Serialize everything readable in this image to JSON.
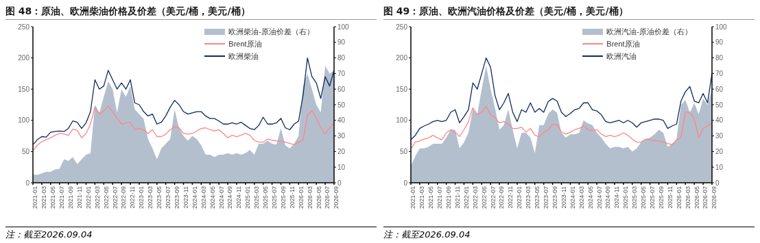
{
  "chart_data": [
    {
      "type": "line",
      "title": "图 48：原油、欧洲柴油价格及价差（美元/桶，美元/桶）",
      "annotations": [
        "注：截至2026.09.04"
      ],
      "legend": "top right",
      "grid": false,
      "x": [
        "2021-01",
        "2021-02",
        "2021-03",
        "2021-04",
        "2021-05",
        "2021-06",
        "2021-07",
        "2021-08",
        "2021-09",
        "2021-10",
        "2021-11",
        "2021-12",
        "2022-01",
        "2022-02",
        "2022-03",
        "2022-04",
        "2022-05",
        "2022-06",
        "2022-07",
        "2022-08",
        "2022-09",
        "2022-10",
        "2022-11",
        "2022-12",
        "2023-01",
        "2023-02",
        "2023-03",
        "2023-04",
        "2023-05",
        "2023-06",
        "2023-07",
        "2023-08",
        "2023-09",
        "2023-10",
        "2023-11",
        "2023-12",
        "2024-01",
        "2024-02",
        "2024-03",
        "2024-04",
        "2024-05",
        "2024-06",
        "2024-07",
        "2024-08",
        "2024-09",
        "2024-10",
        "2024-11",
        "2024-12",
        "2025-01",
        "2025-02",
        "2025-03",
        "2025-04",
        "2025-05",
        "2025-06",
        "2025-07",
        "2025-08",
        "2025-09",
        "2025-10",
        "2025-11",
        "2025-12",
        "2026-01",
        "2026-02",
        "2026-03",
        "2026-04",
        "2026-05",
        "2026-06",
        "2026-07",
        "2026-08",
        "2026-09"
      ],
      "xlim": [
        "2021-01",
        "2026-09"
      ],
      "xticks": [
        "2021-01",
        "2021-03",
        "2021-05",
        "2021-07",
        "2021-09",
        "2021-11",
        "2022-01",
        "2022-03",
        "2022-05",
        "2022-07",
        "2022-09",
        "2022-11",
        "2023-01",
        "2023-03",
        "2023-05",
        "2023-07",
        "2023-09",
        "2023-11",
        "2024-01",
        "2024-03",
        "2024-05",
        "2024-07",
        "2024-09",
        "2024-11",
        "2025-01",
        "2025-03",
        "2025-05",
        "2025-07",
        "2025-09",
        "2025-11",
        "2026-01",
        "2026-03",
        "2026-05",
        "2026-07",
        "2026-09"
      ],
      "ylim": [
        0,
        250
      ],
      "yticks": [
        0,
        50,
        100,
        150,
        200,
        250
      ],
      "y2lim": [
        0,
        100
      ],
      "y2ticks": [
        0,
        10,
        20,
        30,
        40,
        50,
        60,
        70,
        80,
        90,
        100
      ],
      "series": [
        {
          "name": "欧洲柴油-原油价差（右）",
          "type": "area",
          "axis": "y2",
          "color": "#b4bfce",
          "values": [
            5.5,
            5,
            6,
            7,
            7,
            8.5,
            9,
            15,
            14,
            16.5,
            12,
            15,
            18,
            19,
            50,
            45,
            55,
            65,
            60,
            45,
            60,
            55,
            62,
            47,
            44,
            41,
            28,
            22,
            15,
            22,
            25,
            28,
            47,
            35,
            30,
            27,
            30,
            28,
            24,
            18,
            18,
            16.5,
            18,
            18,
            19,
            18,
            19,
            18,
            19,
            21,
            18,
            25,
            25,
            27,
            25,
            24.5,
            35,
            24,
            22,
            25,
            30,
            62,
            70,
            60,
            50,
            45,
            75,
            70,
            72
          ]
        },
        {
          "name": "Brent原油",
          "color": "#ff8585",
          "values": [
            52,
            60,
            66,
            69,
            72,
            76,
            79,
            78,
            76,
            86,
            84,
            72,
            79,
            94,
            121,
            110,
            115,
            123,
            114,
            103,
            94,
            96,
            97,
            85,
            87,
            85,
            79,
            85,
            74,
            74,
            78,
            85,
            90,
            88,
            79,
            78,
            79,
            83,
            87,
            88,
            85,
            83,
            85,
            79,
            72,
            76,
            74,
            76,
            79,
            76,
            68,
            65,
            65,
            70,
            68,
            67,
            67,
            65,
            63,
            61,
            65,
            68,
            108,
            116,
            103,
            88,
            78,
            88,
            96
          ]
        },
        {
          "name": "欧洲柴油",
          "color": "#0d2a5e",
          "values": [
            61,
            69,
            74,
            73,
            81,
            82,
            83,
            82,
            87,
            99,
            97,
            87,
            96,
            114,
            165,
            150,
            155,
            180,
            165,
            150,
            160,
            150,
            165,
            128,
            125,
            114,
            107,
            110,
            94,
            97,
            107,
            121,
            132,
            125,
            114,
            110,
            112,
            114,
            114,
            107,
            103,
            103,
            99,
            94,
            94,
            96,
            94,
            97,
            92,
            87,
            85,
            92,
            105,
            94,
            94,
            96,
            103,
            88,
            85,
            94,
            99,
            140,
            200,
            170,
            160,
            135,
            170,
            155,
            180
          ]
        }
      ]
    },
    {
      "type": "line",
      "title": "图 49：原油、欧洲汽油价格及价差（美元/桶，美元/桶）",
      "annotations": [
        "注：截至2026.09.04"
      ],
      "legend": "top right",
      "grid": false,
      "x": [
        "2021-01",
        "2021-02",
        "2021-03",
        "2021-04",
        "2021-05",
        "2021-06",
        "2021-07",
        "2021-08",
        "2021-09",
        "2021-10",
        "2021-11",
        "2021-12",
        "2022-01",
        "2022-02",
        "2022-03",
        "2022-04",
        "2022-05",
        "2022-06",
        "2022-07",
        "2022-08",
        "2022-09",
        "2022-10",
        "2022-11",
        "2022-12",
        "2023-01",
        "2023-02",
        "2023-03",
        "2023-04",
        "2023-05",
        "2023-06",
        "2023-07",
        "2023-08",
        "2023-09",
        "2023-10",
        "2023-11",
        "2023-12",
        "2024-01",
        "2024-02",
        "2024-03",
        "2024-04",
        "2024-05",
        "2024-06",
        "2024-07",
        "2024-08",
        "2024-09",
        "2024-10",
        "2024-11",
        "2024-12",
        "2025-01",
        "2025-02",
        "2025-03",
        "2025-04",
        "2025-05",
        "2025-06",
        "2025-07",
        "2025-08",
        "2025-09",
        "2025-10",
        "2025-11",
        "2025-12",
        "2026-01",
        "2026-02",
        "2026-03",
        "2026-04",
        "2026-05",
        "2026-06",
        "2026-07",
        "2026-08",
        "2026-09"
      ],
      "xlim": [
        "2021-01",
        "2026-09"
      ],
      "xticks": [
        "2021-01",
        "2021-03",
        "2021-05",
        "2021-07",
        "2021-09",
        "2021-11",
        "2022-01",
        "2022-03",
        "2022-05",
        "2022-07",
        "2022-09",
        "2022-11",
        "2023-01",
        "2023-03",
        "2023-05",
        "2023-07",
        "2023-09",
        "2023-11",
        "2024-01",
        "2024-03",
        "2024-05",
        "2024-07",
        "2024-09",
        "2024-11",
        "2025-01",
        "2025-03",
        "2025-05",
        "2025-07",
        "2025-09",
        "2025-11",
        "2026-01",
        "2026-03",
        "2026-05",
        "2026-07",
        "2026-09"
      ],
      "ylim": [
        0,
        250
      ],
      "yticks": [
        0,
        50,
        100,
        150,
        200,
        250
      ],
      "y2lim": [
        0,
        100
      ],
      "y2ticks": [
        0,
        10,
        20,
        30,
        40,
        50,
        60,
        70,
        80,
        90,
        100
      ],
      "series": [
        {
          "name": "欧洲汽油-原油价差（右）",
          "type": "area",
          "axis": "y2",
          "color": "#b4bfce",
          "values": [
            11,
            17,
            22,
            22,
            23,
            25,
            25,
            25,
            29,
            34,
            34,
            22,
            26,
            32,
            47,
            44,
            60,
            75,
            60,
            48,
            34,
            37,
            47,
            34,
            22,
            32,
            32,
            29,
            19,
            37,
            37,
            44,
            47,
            45,
            32,
            29,
            31,
            31,
            32,
            40,
            38,
            37,
            32,
            29,
            25,
            22,
            23,
            23,
            22,
            23,
            20,
            22,
            26,
            28,
            29,
            31,
            34,
            32,
            23,
            25,
            28,
            50,
            53,
            45,
            51,
            44,
            54,
            50,
            60
          ]
        },
        {
          "name": "Brent原油",
          "color": "#ff8585",
          "values": [
            54,
            65,
            67,
            70,
            72,
            76,
            72,
            69,
            80,
            85,
            81,
            74,
            85,
            98,
            120,
            109,
            113,
            122,
            109,
            104,
            96,
            98,
            94,
            87,
            87,
            89,
            81,
            87,
            76,
            74,
            81,
            85,
            94,
            93,
            81,
            78,
            81,
            85,
            87,
            91,
            85,
            83,
            85,
            78,
            74,
            76,
            74,
            76,
            80,
            76,
            70,
            65,
            65,
            70,
            69,
            68,
            67,
            65,
            63,
            61,
            69,
            72,
            113,
            113,
            102,
            72,
            87,
            91,
            96
          ]
        },
        {
          "name": "欧洲汽油",
          "color": "#0d2a5e",
          "values": [
            69,
            76,
            87,
            91,
            94,
            98,
            100,
            98,
            100,
            113,
            117,
            96,
            106,
            117,
            160,
            150,
            175,
            200,
            185,
            140,
            117,
            128,
            143,
            113,
            98,
            117,
            113,
            128,
            113,
            119,
            113,
            130,
            135,
            131,
            113,
            106,
            111,
            117,
            119,
            128,
            128,
            117,
            115,
            109,
            98,
            96,
            98,
            100,
            96,
            100,
            96,
            89,
            96,
            98,
            100,
            102,
            102,
            100,
            87,
            91,
            94,
            131,
            146,
            154,
            131,
            128,
            143,
            128,
            175
          ]
        }
      ]
    }
  ]
}
